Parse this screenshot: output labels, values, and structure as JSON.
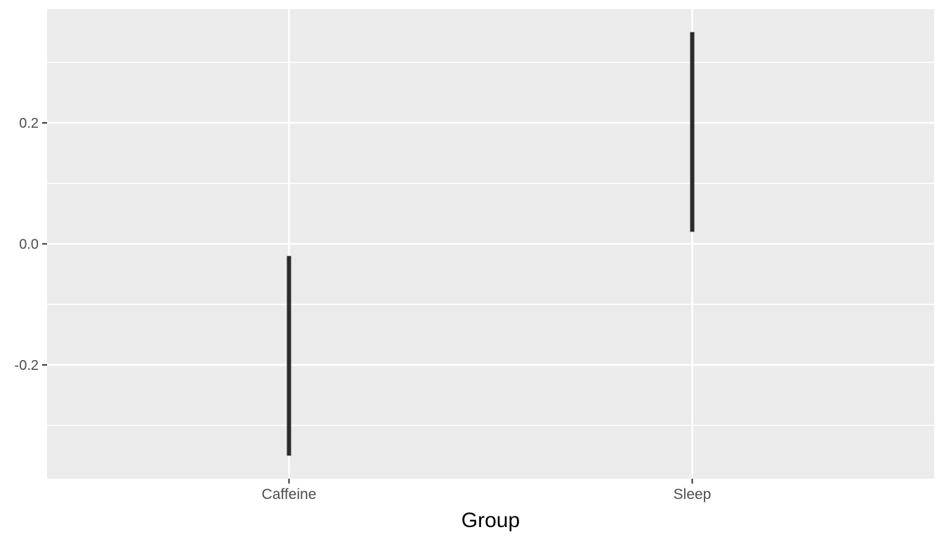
{
  "chart_data": {
    "type": "linerange",
    "title": "",
    "xlabel": "Group",
    "ylabel": "",
    "categories": [
      "Caffeine",
      "Sleep"
    ],
    "series": [
      {
        "name": "Caffeine",
        "ymin": -0.35,
        "ymax": -0.02
      },
      {
        "name": "Sleep",
        "ymin": 0.02,
        "ymax": 0.35
      }
    ],
    "y_ticks": [
      0.2,
      0.0,
      -0.2
    ],
    "y_tick_labels": [
      "0.2",
      "0.0",
      "-0.2"
    ],
    "y_minor_ticks": [
      0.3,
      0.1,
      -0.1,
      -0.3
    ],
    "ylim": [
      -0.388,
      0.388
    ],
    "grid": "horizontal major+minor, vertical major at categories; white lines on grey panel",
    "legend": "none",
    "colors": {
      "background": "#FFFFFF",
      "panel_bg": "#EBEBEB",
      "grid": "#FFFFFF",
      "segment": "#2B2B2B",
      "axis_text": "#4D4D4D",
      "axis_title": "#000000",
      "tick": "#333333"
    }
  }
}
